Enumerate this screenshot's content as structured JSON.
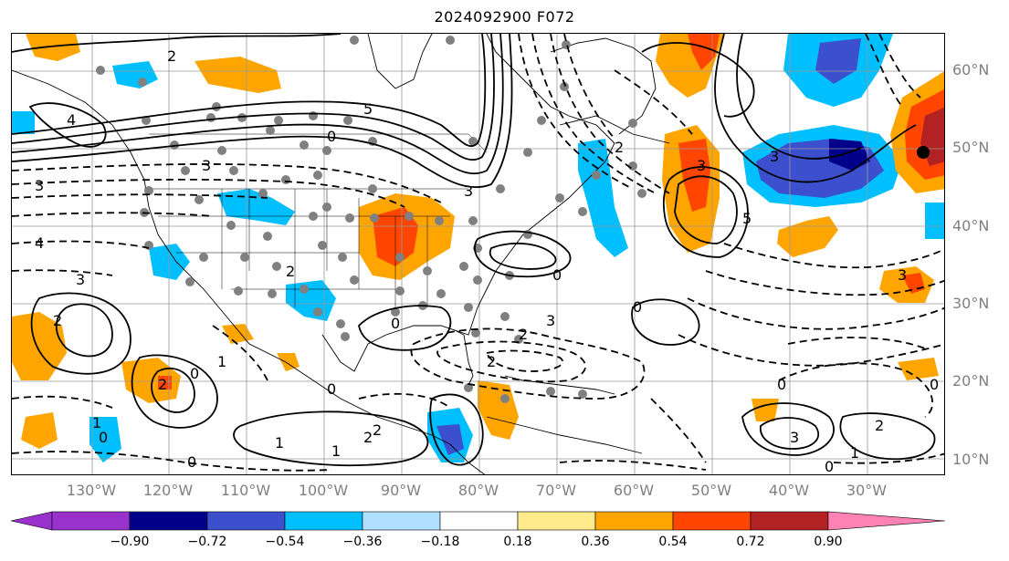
{
  "title": "2024092900 F072",
  "lat_labels": [
    "60°N",
    "50°N",
    "40°N",
    "30°N",
    "20°N",
    "10°N"
  ],
  "lon_labels": [
    "130°W",
    "120°W",
    "110°W",
    "100°W",
    "90°W",
    "80°W",
    "70°W",
    "60°W",
    "50°W",
    "40°W",
    "30°W"
  ],
  "colorbar": {
    "ticks": [
      "−0.90",
      "−0.72",
      "−0.54",
      "−0.36",
      "−0.18",
      "0.18",
      "0.36",
      "0.54",
      "0.72",
      "0.90"
    ],
    "colors": [
      "#9932cc",
      "#00008b",
      "#3c50cd",
      "#00bfff",
      "#b0e0ff",
      "#ffffff",
      "#ffea8c",
      "#ffa500",
      "#ff4500",
      "#b22222",
      "#ff82b4"
    ]
  },
  "contour_labels": [
    "2",
    "5",
    "0",
    "3",
    "4",
    "3",
    "2",
    "2",
    "3",
    "0",
    "2",
    "0",
    "1",
    "0",
    "2",
    "1",
    "3",
    "0",
    "2",
    "3",
    "5",
    "3",
    "2",
    "3",
    "0",
    "0",
    "3",
    "2",
    "1",
    "0",
    "1",
    "0",
    "4",
    "3",
    "2",
    "1",
    "0",
    "2",
    "0"
  ]
}
